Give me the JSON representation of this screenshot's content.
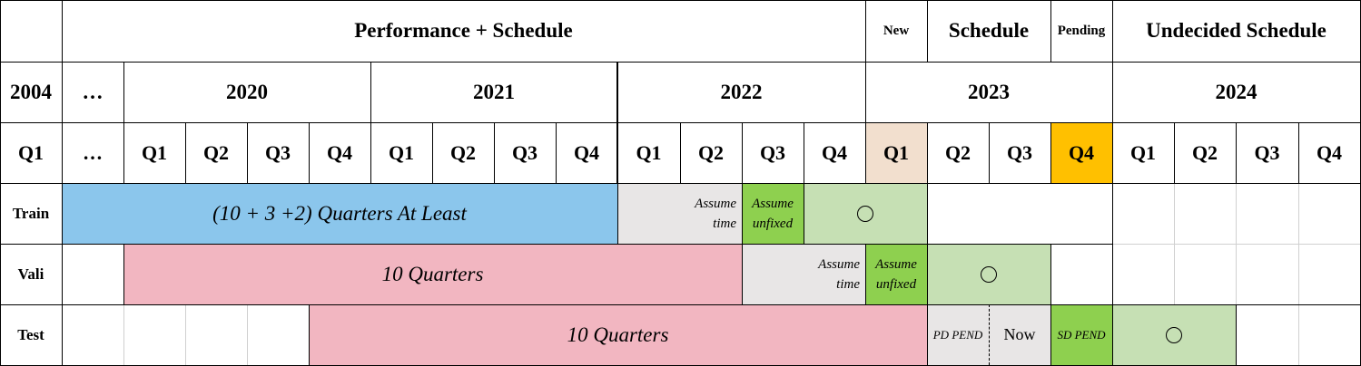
{
  "header": {
    "performance_schedule": "Performance + Schedule",
    "new": "New",
    "schedule": "Schedule",
    "pending": "Pending",
    "undecided_schedule": "Undecided Schedule"
  },
  "years": {
    "y2004": "2004",
    "ellipsis": "…",
    "y2020": "2020",
    "y2021": "2021",
    "y2022": "2022",
    "y2023": "2023",
    "y2024": "2024"
  },
  "quarters": [
    "Q1",
    "…",
    "Q1",
    "Q2",
    "Q3",
    "Q4",
    "Q1",
    "Q2",
    "Q3",
    "Q4",
    "Q1",
    "Q2",
    "Q3",
    "Q4",
    "Q1",
    "Q2",
    "Q3",
    "Q4",
    "Q1",
    "Q2",
    "Q3",
    "Q4"
  ],
  "rows": {
    "train": {
      "label": "Train",
      "main": "(10 + 3 +2) Quarters At Least",
      "assume_time_1": "Assume",
      "assume_time_2": "time",
      "assume_unfixed_1": "Assume",
      "assume_unfixed_2": "unfixed",
      "circle": "○"
    },
    "vali": {
      "label": "Vali",
      "main": "10 Quarters",
      "assume_time_1": "Assume",
      "assume_time_2": "time",
      "assume_unfixed_1": "Assume",
      "assume_unfixed_2": "unfixed",
      "circle": "○"
    },
    "test": {
      "label": "Test",
      "main": "10 Quarters",
      "pd_pend": "PD PEND",
      "now": "Now",
      "sd_pend": "SD PEND",
      "circle": "○"
    }
  },
  "colors": {
    "train_bar": "#8bc6ec",
    "pink_bar": "#f2b6c1",
    "grey": "#e8e6e6",
    "bright_green": "#8ed04f",
    "light_green": "#c6e0b4",
    "new_q1": "#f2dfce",
    "pending_q4": "#ffc000"
  }
}
